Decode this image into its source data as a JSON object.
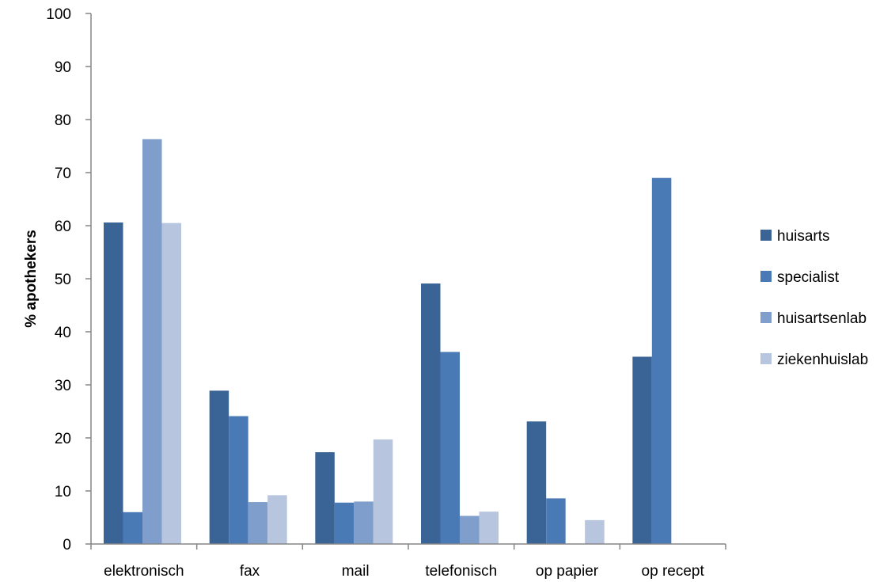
{
  "chart_data": {
    "type": "bar",
    "title": "",
    "xlabel": "",
    "ylabel": "% apothekers",
    "ylim": [
      0,
      100
    ],
    "yticks": [
      0,
      10,
      20,
      30,
      40,
      50,
      60,
      70,
      80,
      90,
      100
    ],
    "grid": false,
    "legend_position": "right",
    "categories": [
      "elektronisch",
      "fax",
      "mail",
      "telefonisch",
      "op papier",
      "op recept"
    ],
    "series": [
      {
        "name": "huisarts",
        "color": "#3b6496",
        "values": [
          60.6,
          28.9,
          17.3,
          49.1,
          23.1,
          35.3
        ]
      },
      {
        "name": "specialist",
        "color": "#4a7ab5",
        "values": [
          6.0,
          24.1,
          7.8,
          36.2,
          8.6,
          69.0
        ]
      },
      {
        "name": "huisartsenlab",
        "color": "#7f9ecb",
        "values": [
          76.3,
          7.9,
          8.0,
          5.3,
          null,
          null
        ]
      },
      {
        "name": "ziekenhuislab",
        "color": "#b7c5df",
        "values": [
          60.5,
          9.2,
          19.7,
          6.1,
          4.5,
          null
        ]
      }
    ]
  }
}
